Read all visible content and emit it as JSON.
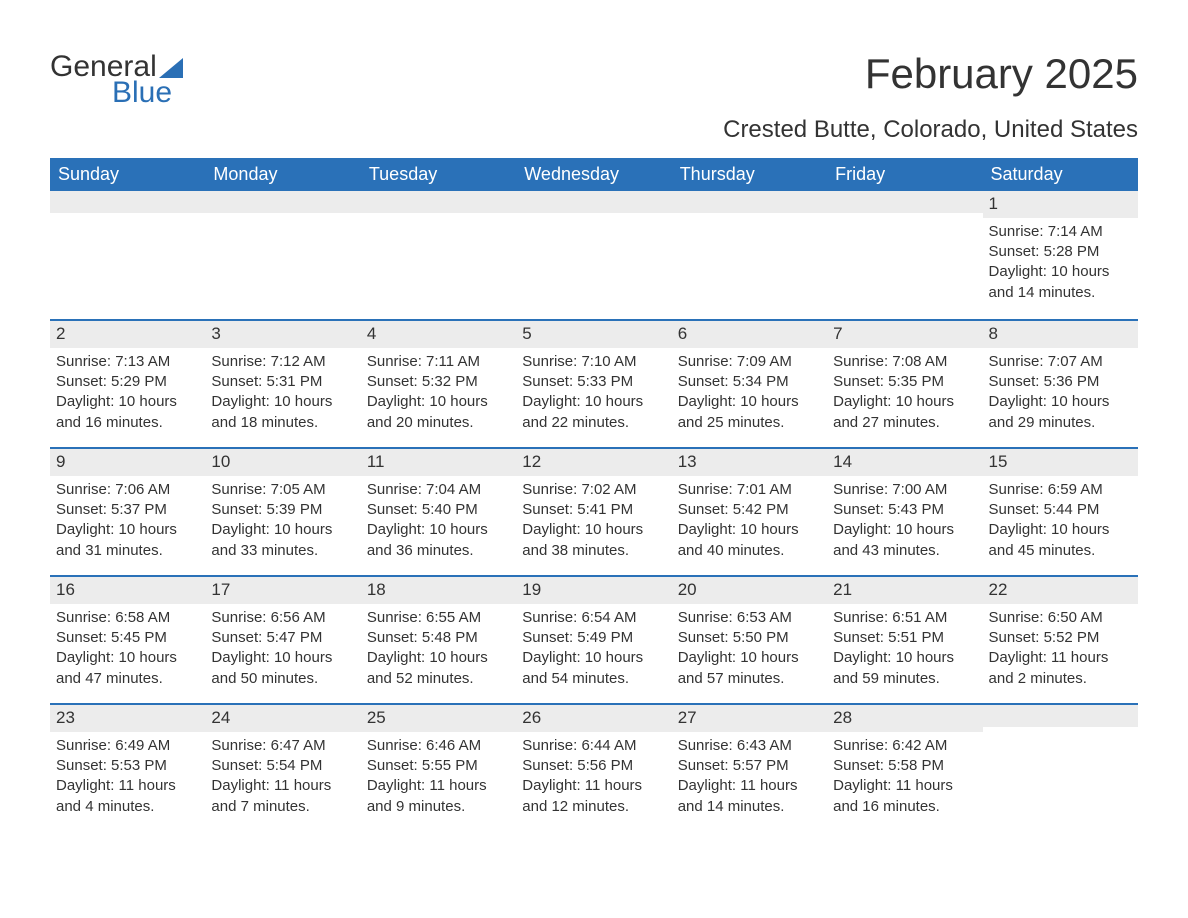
{
  "logo": {
    "part1": "General",
    "part2": "Blue"
  },
  "title": "February 2025",
  "subtitle": "Crested Butte, Colorado, United States",
  "colors": {
    "header_bg": "#2a71b8",
    "daynum_bg": "#ececec",
    "text": "#333333",
    "logo_blue": "#2a6fb5"
  },
  "day_names": [
    "Sunday",
    "Monday",
    "Tuesday",
    "Wednesday",
    "Thursday",
    "Friday",
    "Saturday"
  ],
  "weeks": [
    [
      {
        "blank": true
      },
      {
        "blank": true
      },
      {
        "blank": true
      },
      {
        "blank": true
      },
      {
        "blank": true
      },
      {
        "blank": true
      },
      {
        "n": "1",
        "sunrise": "Sunrise: 7:14 AM",
        "sunset": "Sunset: 5:28 PM",
        "daylight": "Daylight: 10 hours and 14 minutes."
      }
    ],
    [
      {
        "n": "2",
        "sunrise": "Sunrise: 7:13 AM",
        "sunset": "Sunset: 5:29 PM",
        "daylight": "Daylight: 10 hours and 16 minutes."
      },
      {
        "n": "3",
        "sunrise": "Sunrise: 7:12 AM",
        "sunset": "Sunset: 5:31 PM",
        "daylight": "Daylight: 10 hours and 18 minutes."
      },
      {
        "n": "4",
        "sunrise": "Sunrise: 7:11 AM",
        "sunset": "Sunset: 5:32 PM",
        "daylight": "Daylight: 10 hours and 20 minutes."
      },
      {
        "n": "5",
        "sunrise": "Sunrise: 7:10 AM",
        "sunset": "Sunset: 5:33 PM",
        "daylight": "Daylight: 10 hours and 22 minutes."
      },
      {
        "n": "6",
        "sunrise": "Sunrise: 7:09 AM",
        "sunset": "Sunset: 5:34 PM",
        "daylight": "Daylight: 10 hours and 25 minutes."
      },
      {
        "n": "7",
        "sunrise": "Sunrise: 7:08 AM",
        "sunset": "Sunset: 5:35 PM",
        "daylight": "Daylight: 10 hours and 27 minutes."
      },
      {
        "n": "8",
        "sunrise": "Sunrise: 7:07 AM",
        "sunset": "Sunset: 5:36 PM",
        "daylight": "Daylight: 10 hours and 29 minutes."
      }
    ],
    [
      {
        "n": "9",
        "sunrise": "Sunrise: 7:06 AM",
        "sunset": "Sunset: 5:37 PM",
        "daylight": "Daylight: 10 hours and 31 minutes."
      },
      {
        "n": "10",
        "sunrise": "Sunrise: 7:05 AM",
        "sunset": "Sunset: 5:39 PM",
        "daylight": "Daylight: 10 hours and 33 minutes."
      },
      {
        "n": "11",
        "sunrise": "Sunrise: 7:04 AM",
        "sunset": "Sunset: 5:40 PM",
        "daylight": "Daylight: 10 hours and 36 minutes."
      },
      {
        "n": "12",
        "sunrise": "Sunrise: 7:02 AM",
        "sunset": "Sunset: 5:41 PM",
        "daylight": "Daylight: 10 hours and 38 minutes."
      },
      {
        "n": "13",
        "sunrise": "Sunrise: 7:01 AM",
        "sunset": "Sunset: 5:42 PM",
        "daylight": "Daylight: 10 hours and 40 minutes."
      },
      {
        "n": "14",
        "sunrise": "Sunrise: 7:00 AM",
        "sunset": "Sunset: 5:43 PM",
        "daylight": "Daylight: 10 hours and 43 minutes."
      },
      {
        "n": "15",
        "sunrise": "Sunrise: 6:59 AM",
        "sunset": "Sunset: 5:44 PM",
        "daylight": "Daylight: 10 hours and 45 minutes."
      }
    ],
    [
      {
        "n": "16",
        "sunrise": "Sunrise: 6:58 AM",
        "sunset": "Sunset: 5:45 PM",
        "daylight": "Daylight: 10 hours and 47 minutes."
      },
      {
        "n": "17",
        "sunrise": "Sunrise: 6:56 AM",
        "sunset": "Sunset: 5:47 PM",
        "daylight": "Daylight: 10 hours and 50 minutes."
      },
      {
        "n": "18",
        "sunrise": "Sunrise: 6:55 AM",
        "sunset": "Sunset: 5:48 PM",
        "daylight": "Daylight: 10 hours and 52 minutes."
      },
      {
        "n": "19",
        "sunrise": "Sunrise: 6:54 AM",
        "sunset": "Sunset: 5:49 PM",
        "daylight": "Daylight: 10 hours and 54 minutes."
      },
      {
        "n": "20",
        "sunrise": "Sunrise: 6:53 AM",
        "sunset": "Sunset: 5:50 PM",
        "daylight": "Daylight: 10 hours and 57 minutes."
      },
      {
        "n": "21",
        "sunrise": "Sunrise: 6:51 AM",
        "sunset": "Sunset: 5:51 PM",
        "daylight": "Daylight: 10 hours and 59 minutes."
      },
      {
        "n": "22",
        "sunrise": "Sunrise: 6:50 AM",
        "sunset": "Sunset: 5:52 PM",
        "daylight": "Daylight: 11 hours and 2 minutes."
      }
    ],
    [
      {
        "n": "23",
        "sunrise": "Sunrise: 6:49 AM",
        "sunset": "Sunset: 5:53 PM",
        "daylight": "Daylight: 11 hours and 4 minutes."
      },
      {
        "n": "24",
        "sunrise": "Sunrise: 6:47 AM",
        "sunset": "Sunset: 5:54 PM",
        "daylight": "Daylight: 11 hours and 7 minutes."
      },
      {
        "n": "25",
        "sunrise": "Sunrise: 6:46 AM",
        "sunset": "Sunset: 5:55 PM",
        "daylight": "Daylight: 11 hours and 9 minutes."
      },
      {
        "n": "26",
        "sunrise": "Sunrise: 6:44 AM",
        "sunset": "Sunset: 5:56 PM",
        "daylight": "Daylight: 11 hours and 12 minutes."
      },
      {
        "n": "27",
        "sunrise": "Sunrise: 6:43 AM",
        "sunset": "Sunset: 5:57 PM",
        "daylight": "Daylight: 11 hours and 14 minutes."
      },
      {
        "n": "28",
        "sunrise": "Sunrise: 6:42 AM",
        "sunset": "Sunset: 5:58 PM",
        "daylight": "Daylight: 11 hours and 16 minutes."
      },
      {
        "blank": true
      }
    ]
  ]
}
